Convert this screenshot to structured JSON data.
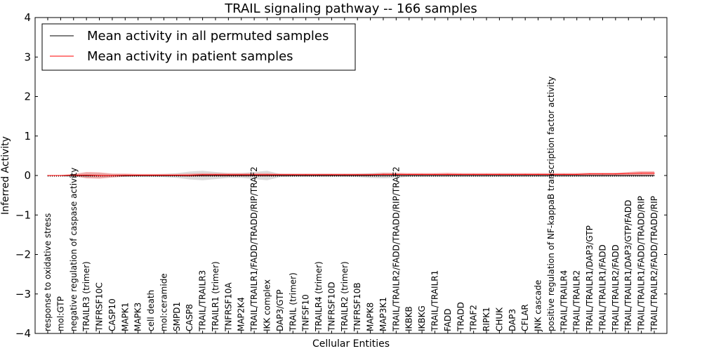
{
  "chart_data": {
    "type": "line",
    "title": "TRAIL signaling pathway -- 166 samples",
    "xlabel": "Cellular Entities",
    "ylabel": "Inferred Activity",
    "ylim": [
      -4,
      4
    ],
    "yticks": [
      -4,
      -3,
      -2,
      -1,
      0,
      1,
      2,
      3,
      4
    ],
    "ytick_labels": [
      "−4",
      "−3",
      "−2",
      "−1",
      "0",
      "1",
      "2",
      "3",
      "4"
    ],
    "legend_position": "top-left",
    "categories": [
      "response to oxidative stress",
      "mol:GTP",
      "negative regulation of caspase activity",
      "TRAILR3 (trimer)",
      "TNFRSF10C",
      "CASP10",
      "MAPK1",
      "MAPK3",
      "cell death",
      "mol:ceramide",
      "SMPD1",
      "CASP8",
      "TRAIL/TRAILR3",
      "TRAILR1 (trimer)",
      "TNFRSF10A",
      "MAP2K4",
      "TRAIL/TRAILR1/FADD/TRADD/RIP/TRAF2",
      "IKK complex",
      "DAP3/GTP",
      "TRAIL (trimer)",
      "TNFSF10",
      "TRAILR4 (trimer)",
      "TNFRSF10D",
      "TRAILR2 (trimer)",
      "TNFRSF10B",
      "MAPK8",
      "MAP3K1",
      "TRAIL/TRAILR2/FADD/TRADD/RIP/TRAF2",
      "IKBKB",
      "IKBKG",
      "TRAIL/TRAILR1",
      "FADD",
      "TRADD",
      "TRAF2",
      "RIPK1",
      "CHUK",
      "DAP3",
      "CFLAR",
      "JNK cascade",
      "positive regulation of NF-kappaB transcription factor activity",
      "TRAIL/TRAILR4",
      "TRAIL/TRAILR2",
      "TRAIL/TRAILR1/DAP3/GTP",
      "TRAIL/TRAILR1/FADD",
      "TRAIL/TRAILR2/FADD",
      "TRAIL/TRAILR1/DAP3/GTP/FADD",
      "TRAIL/TRAILR1/FADD/TRADD/RIP",
      "TRAIL/TRAILR2/FADD/TRADD/RIP"
    ],
    "series": [
      {
        "name": "Mean activity in all permuted samples",
        "color": "#000000",
        "values": [
          0,
          0,
          0,
          0,
          0,
          0,
          0,
          0,
          0,
          0,
          0,
          0,
          0,
          0,
          0,
          0,
          0,
          0,
          0,
          0,
          0,
          0,
          0,
          0,
          0,
          0,
          0,
          0,
          0,
          0,
          0,
          0,
          0,
          0,
          0,
          0,
          0,
          0,
          0,
          0,
          0,
          0,
          0,
          0,
          0,
          0,
          0,
          0
        ],
        "band_halfwidth": [
          0.01,
          0.01,
          0.02,
          0.06,
          0.06,
          0.04,
          0.03,
          0.03,
          0.03,
          0.04,
          0.06,
          0.1,
          0.12,
          0.09,
          0.06,
          0.06,
          0.09,
          0.12,
          0.04,
          0.03,
          0.03,
          0.03,
          0.03,
          0.03,
          0.04,
          0.06,
          0.07,
          0.06,
          0.03,
          0.03,
          0.03,
          0.03,
          0.03,
          0.03,
          0.03,
          0.03,
          0.03,
          0.03,
          0.03,
          0.03,
          0.03,
          0.03,
          0.03,
          0.03,
          0.03,
          0.03,
          0.03,
          0.03
        ],
        "band_color": "#bbbbbb"
      },
      {
        "name": "Mean activity in patient samples",
        "color": "#ff0000",
        "values": [
          0,
          0,
          0.01,
          0.01,
          0,
          0,
          0.01,
          0.01,
          0.01,
          0.01,
          0.01,
          0.01,
          0.02,
          0.02,
          0.02,
          0.02,
          0.02,
          0.02,
          0.02,
          0.02,
          0.02,
          0.02,
          0.02,
          0.02,
          0.02,
          0.02,
          0.03,
          0.03,
          0.03,
          0.03,
          0.03,
          0.03,
          0.03,
          0.03,
          0.03,
          0.03,
          0.03,
          0.03,
          0.03,
          0.03,
          0.03,
          0.03,
          0.04,
          0.04,
          0.04,
          0.05,
          0.06,
          0.06
        ],
        "band_halfwidth": [
          0.01,
          0.01,
          0.03,
          0.08,
          0.08,
          0.05,
          0.04,
          0.03,
          0.03,
          0.03,
          0.03,
          0.04,
          0.04,
          0.04,
          0.04,
          0.04,
          0.04,
          0.04,
          0.03,
          0.03,
          0.03,
          0.03,
          0.03,
          0.03,
          0.03,
          0.03,
          0.04,
          0.04,
          0.03,
          0.03,
          0.03,
          0.04,
          0.03,
          0.03,
          0.03,
          0.03,
          0.03,
          0.03,
          0.03,
          0.03,
          0.03,
          0.03,
          0.03,
          0.03,
          0.03,
          0.04,
          0.05,
          0.05
        ],
        "band_color": "#f08080"
      }
    ]
  }
}
